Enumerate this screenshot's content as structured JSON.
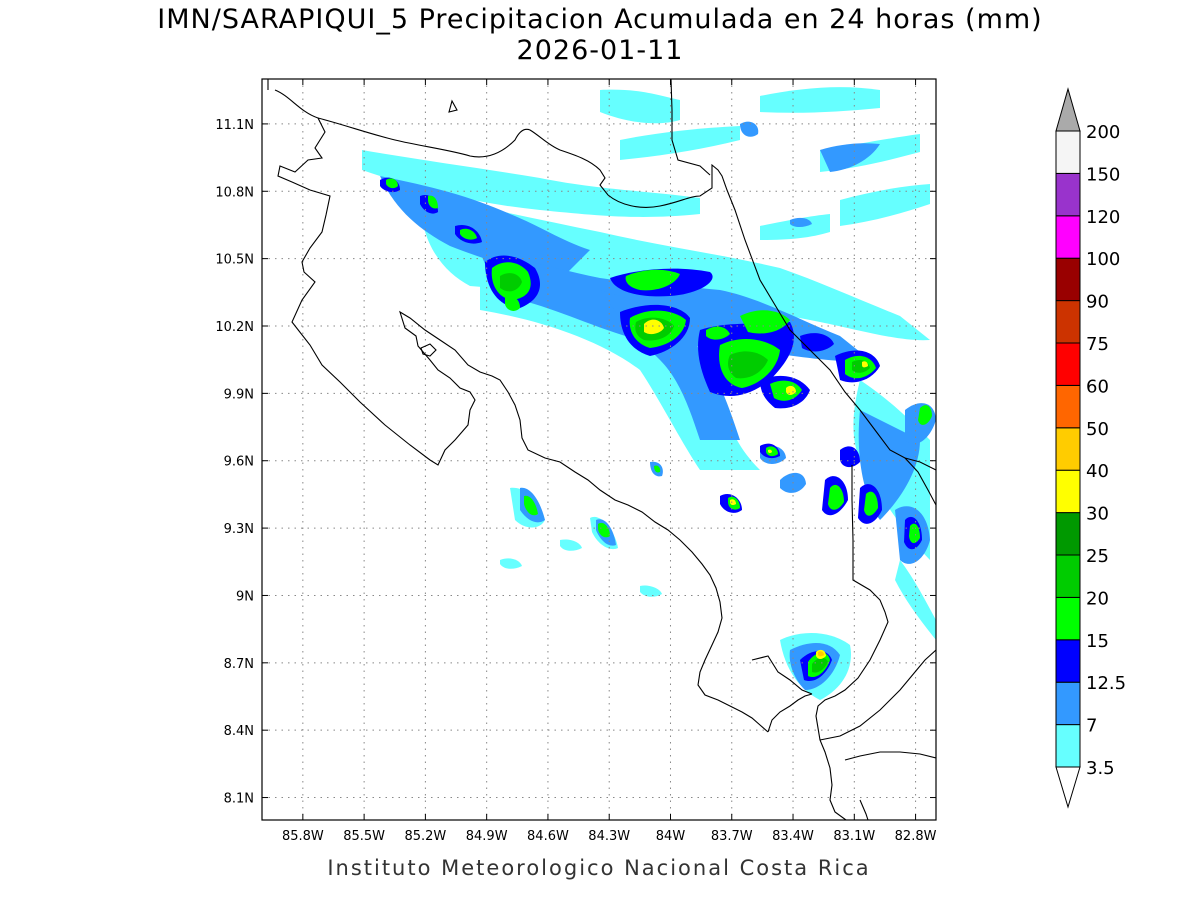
{
  "title_line1": "IMN/SARAPIQUI_5 Precipitacion Acumulada en 24 horas (mm)",
  "title_line2": "2026-01-11",
  "footer": "Instituto Meteorologico Nacional Costa Rica",
  "chart_data": {
    "type": "heatmap",
    "title": "IMN/SARAPIQUI_5 Precipitacion Acumulada en 24 horas (mm)",
    "subtitle": "2026-01-11",
    "xlabel": "",
    "ylabel": "",
    "xlim": [
      -86.0,
      -82.7
    ],
    "ylim": [
      8.0,
      11.3
    ],
    "x_ticks": [
      {
        "value": -85.8,
        "label": "85.8W"
      },
      {
        "value": -85.5,
        "label": "85.5W"
      },
      {
        "value": -85.2,
        "label": "85.2W"
      },
      {
        "value": -84.9,
        "label": "84.9W"
      },
      {
        "value": -84.6,
        "label": "84.6W"
      },
      {
        "value": -84.3,
        "label": "84.3W"
      },
      {
        "value": -84.0,
        "label": "84W"
      },
      {
        "value": -83.7,
        "label": "83.7W"
      },
      {
        "value": -83.4,
        "label": "83.4W"
      },
      {
        "value": -83.1,
        "label": "83.1W"
      },
      {
        "value": -82.8,
        "label": "82.8W"
      }
    ],
    "y_ticks": [
      {
        "value": 11.1,
        "label": "11.1N"
      },
      {
        "value": 10.8,
        "label": "10.8N"
      },
      {
        "value": 10.5,
        "label": "10.5N"
      },
      {
        "value": 10.2,
        "label": "10.2N"
      },
      {
        "value": 9.9,
        "label": "9.9N"
      },
      {
        "value": 9.6,
        "label": "9.6N"
      },
      {
        "value": 9.3,
        "label": "9.3N"
      },
      {
        "value": 9.0,
        "label": "9N"
      },
      {
        "value": 8.7,
        "label": "8.7N"
      },
      {
        "value": 8.4,
        "label": "8.4N"
      },
      {
        "value": 8.1,
        "label": "8.1N"
      }
    ],
    "grid": true,
    "legend_placement": "right",
    "color_scale": [
      {
        "label": "3.5",
        "color": "#66ffff"
      },
      {
        "label": "7",
        "color": "#3399ff"
      },
      {
        "label": "12.5",
        "color": "#0000ff"
      },
      {
        "label": "15",
        "color": "#00ff00"
      },
      {
        "label": "20",
        "color": "#00cc00"
      },
      {
        "label": "25",
        "color": "#009900"
      },
      {
        "label": "30",
        "color": "#ffff00"
      },
      {
        "label": "40",
        "color": "#ffcc00"
      },
      {
        "label": "50",
        "color": "#ff6600"
      },
      {
        "label": "60",
        "color": "#ff0000"
      },
      {
        "label": "75",
        "color": "#cc3300"
      },
      {
        "label": "90",
        "color": "#990000"
      },
      {
        "label": "100",
        "color": "#ff00ff"
      },
      {
        "label": "120",
        "color": "#9933cc"
      },
      {
        "label": "150",
        "color": "#f5f5f5"
      },
      {
        "label": "200",
        "color": "#aaaaaa"
      }
    ],
    "cells": [
      {
        "lon": -84.05,
        "lat": 10.2,
        "level": 6
      },
      {
        "lon": -83.1,
        "lat": 8.73,
        "level": 6
      },
      {
        "lon": -83.28,
        "lat": 9.9,
        "level": 6
      },
      {
        "lon": -82.9,
        "lat": 10.03,
        "level": 5
      },
      {
        "lon": -83.58,
        "lat": 9.4,
        "level": 5
      },
      {
        "lon": -84.62,
        "lat": 10.36,
        "level": 4
      },
      {
        "lon": -83.8,
        "lat": 10.38,
        "level": 4
      },
      {
        "lon": -83.45,
        "lat": 10.0,
        "level": 4
      },
      {
        "lon": -83.1,
        "lat": 9.55,
        "level": 4
      },
      {
        "lon": -83.0,
        "lat": 9.35,
        "level": 4
      },
      {
        "lon": -82.8,
        "lat": 9.3,
        "level": 4
      },
      {
        "lon": -84.62,
        "lat": 9.38,
        "level": 4
      },
      {
        "lon": -84.25,
        "lat": 9.26,
        "level": 4
      },
      {
        "lon": -83.38,
        "lat": 9.64,
        "level": 4
      },
      {
        "lon": -85.25,
        "lat": 10.85,
        "level": 4
      },
      {
        "lon": -85.08,
        "lat": 10.76,
        "level": 4
      },
      {
        "lon": -84.9,
        "lat": 10.62,
        "level": 4
      },
      {
        "lon": -83.95,
        "lat": 9.55,
        "level": 4
      },
      {
        "lon": -82.75,
        "lat": 9.78,
        "level": 4
      },
      {
        "lon": -83.2,
        "lat": 10.15,
        "level": 4
      },
      {
        "lon": -84.2,
        "lat": 10.4,
        "level": 3
      },
      {
        "lon": -83.6,
        "lat": 10.15,
        "level": 3
      },
      {
        "lon": -83.3,
        "lat": 10.25,
        "level": 3
      },
      {
        "lon": -82.9,
        "lat": 9.6,
        "level": 3
      }
    ]
  }
}
